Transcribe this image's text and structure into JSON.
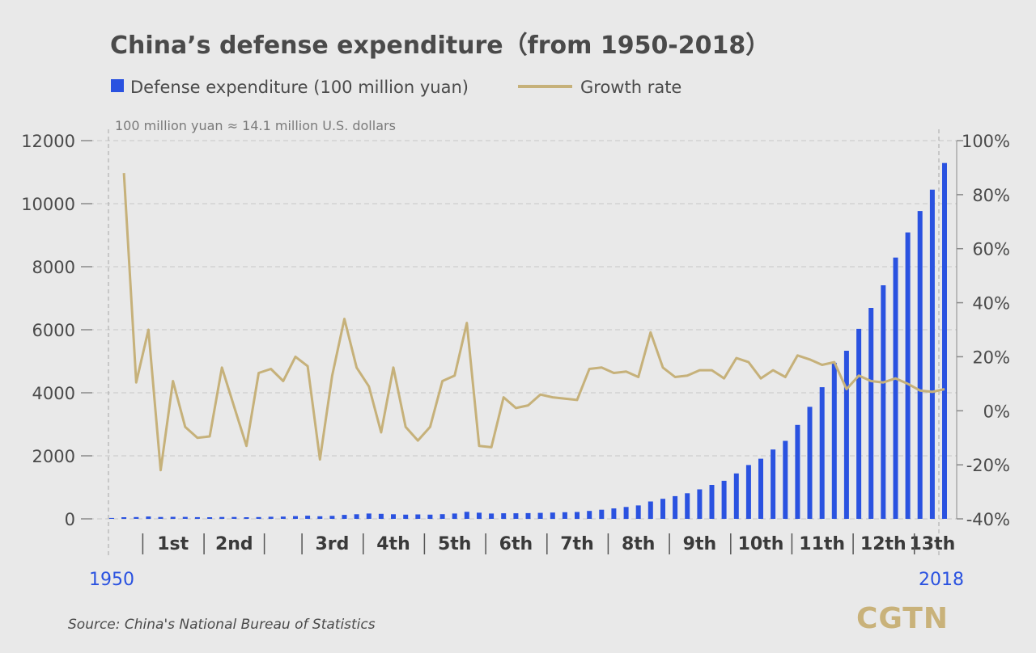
{
  "chart_data": {
    "type": "bar-line",
    "title": "China’s defense expenditure（from 1950-2018）",
    "note": "100 million yuan ≈ 14.1 million U.S. dollars",
    "legend": {
      "placement": "top-left",
      "entries": [
        {
          "label": "Defense expenditure (100 million yuan)",
          "color": "#2a52e0",
          "kind": "bar"
        },
        {
          "label": "Growth rate",
          "color": "#c6b17a",
          "kind": "line"
        }
      ]
    },
    "colors": {
      "bar": "#2a52e0",
      "line": "#c6b17a",
      "year_label": "#2a52e0",
      "text": "#4a4a4a"
    },
    "grid": true,
    "x": [
      1950,
      1951,
      1952,
      1953,
      1954,
      1955,
      1956,
      1957,
      1958,
      1959,
      1960,
      1961,
      1962,
      1963,
      1964,
      1965,
      1966,
      1967,
      1968,
      1969,
      1970,
      1971,
      1972,
      1973,
      1974,
      1975,
      1976,
      1977,
      1978,
      1979,
      1980,
      1981,
      1982,
      1983,
      1984,
      1985,
      1986,
      1987,
      1988,
      1989,
      1990,
      1991,
      1992,
      1993,
      1994,
      1995,
      1996,
      1997,
      1998,
      1999,
      2000,
      2001,
      2002,
      2003,
      2004,
      2005,
      2006,
      2007,
      2008,
      2009,
      2010,
      2011,
      2012,
      2013,
      2014,
      2015,
      2016,
      2017,
      2018
    ],
    "y_left": {
      "label": "",
      "ticks": [
        "0",
        "2000",
        "4000",
        "6000",
        "8000",
        "10000",
        "12000"
      ],
      "range": [
        0,
        12000
      ]
    },
    "y_right": {
      "label": "",
      "ticks": [
        "-40%",
        "-20%",
        "0%",
        "20%",
        "40%",
        "60%",
        "80%",
        "100%"
      ],
      "range": [
        -40,
        100
      ]
    },
    "series": [
      {
        "name": "Defense expenditure (100 million yuan)",
        "type": "bar",
        "axis": "left",
        "values": [
          28,
          52,
          57,
          75,
          58,
          65,
          61,
          55,
          50,
          58,
          58,
          50,
          57,
          67,
          73,
          87,
          101,
          83,
          94,
          126,
          145,
          169,
          160,
          145,
          133,
          142,
          134,
          149,
          168,
          223,
          194,
          168,
          176,
          177,
          181,
          191,
          201,
          210,
          218,
          252,
          290,
          330,
          378,
          426,
          551,
          637,
          720,
          813,
          935,
          1077,
          1208,
          1442,
          1708,
          1908,
          2200,
          2475,
          2979,
          3555,
          4178,
          4951,
          5333,
          6028,
          6692,
          7411,
          8290,
          9088,
          9766,
          10444,
          11290
        ]
      },
      {
        "name": "Growth rate",
        "type": "line",
        "axis": "right",
        "x": [
          1951,
          1952,
          1953,
          1954,
          1955,
          1956,
          1957,
          1958,
          1959,
          1960,
          1961,
          1962,
          1963,
          1964,
          1965,
          1966,
          1967,
          1968,
          1969,
          1970,
          1971,
          1972,
          1973,
          1974,
          1975,
          1976,
          1977,
          1978,
          1979,
          1980,
          1981,
          1982,
          1983,
          1984,
          1985,
          1986,
          1987,
          1988,
          1989,
          1990,
          1991,
          1992,
          1993,
          1994,
          1995,
          1996,
          1997,
          1998,
          1999,
          2000,
          2001,
          2002,
          2003,
          2004,
          2005,
          2006,
          2007,
          2008,
          2009,
          2010,
          2011,
          2012,
          2013,
          2014,
          2015,
          2016,
          2017,
          2018
        ],
        "values": [
          88,
          10.5,
          30,
          -22,
          11,
          -6,
          -10,
          -9.5,
          16,
          1.5,
          -13,
          14,
          15.5,
          11,
          20,
          16.5,
          -18,
          13,
          34,
          16,
          9,
          -8,
          16,
          -6,
          -11,
          -6,
          11,
          13,
          32.5,
          -13,
          -13.5,
          5,
          1,
          2,
          6,
          5,
          4.5,
          4,
          15.5,
          16,
          14,
          14.5,
          12.5,
          29,
          16,
          12.5,
          13,
          15,
          15,
          12,
          19.5,
          18,
          12,
          15,
          12.5,
          20.5,
          19,
          17,
          18,
          8,
          13,
          11,
          10.5,
          12,
          10,
          7.5,
          7,
          8
        ]
      }
    ],
    "five_year_plans": [
      {
        "label": "1st",
        "from": 1953,
        "to": 1957
      },
      {
        "label": "2nd",
        "from": 1958,
        "to": 1962
      },
      {
        "label": "3rd",
        "from": 1966,
        "to": 1970
      },
      {
        "label": "4th",
        "from": 1971,
        "to": 1975
      },
      {
        "label": "5th",
        "from": 1976,
        "to": 1980
      },
      {
        "label": "6th",
        "from": 1981,
        "to": 1985
      },
      {
        "label": "7th",
        "from": 1986,
        "to": 1990
      },
      {
        "label": "8th",
        "from": 1991,
        "to": 1995
      },
      {
        "label": "9th",
        "from": 1996,
        "to": 2000
      },
      {
        "label": "10th",
        "from": 2001,
        "to": 2005
      },
      {
        "label": "11th",
        "from": 2006,
        "to": 2010
      },
      {
        "label": "12th",
        "from": 2011,
        "to": 2015
      },
      {
        "label": "13th",
        "from": 2016,
        "to": 2020
      }
    ],
    "start_year_label": "1950",
    "end_year_label": "2018",
    "source": "Source: China's National Bureau of Statistics",
    "logo": "CGTN"
  }
}
